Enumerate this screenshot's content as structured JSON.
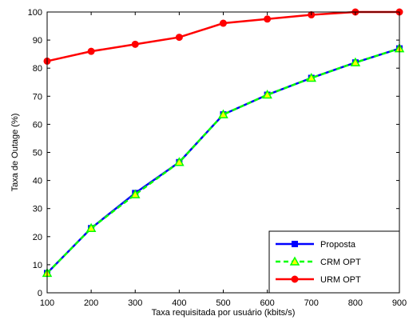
{
  "chart_data": {
    "type": "line",
    "xlabel": "Taxa requisitada por usuário (kbits/s)",
    "ylabel": "Taxa de Outage (%)",
    "xlim": [
      100,
      900
    ],
    "ylim": [
      0,
      100
    ],
    "x_ticks": [
      100,
      200,
      300,
      400,
      500,
      600,
      700,
      800,
      900
    ],
    "y_ticks": [
      0,
      10,
      20,
      30,
      40,
      50,
      60,
      70,
      80,
      90,
      100
    ],
    "grid": false,
    "legend_position": "bottom-right",
    "x": [
      100,
      200,
      300,
      400,
      500,
      600,
      700,
      800,
      900
    ],
    "series": [
      {
        "name": "Proposta",
        "color": "#0000ff",
        "marker": "square",
        "line_style": "solid",
        "values": [
          7,
          23,
          35.5,
          46.5,
          63.5,
          70.5,
          76.5,
          82,
          87
        ]
      },
      {
        "name": "CRM OPT",
        "color": "#00ff00",
        "marker": "triangle",
        "line_style": "dashed",
        "values": [
          7,
          23,
          35,
          46.5,
          63.5,
          70.5,
          76.5,
          82,
          87
        ]
      },
      {
        "name": "URM OPT",
        "color": "#ff0000",
        "marker": "circle",
        "line_style": "solid",
        "values": [
          82.5,
          86,
          88.5,
          91,
          96,
          97.5,
          99,
          100,
          100
        ]
      }
    ]
  }
}
